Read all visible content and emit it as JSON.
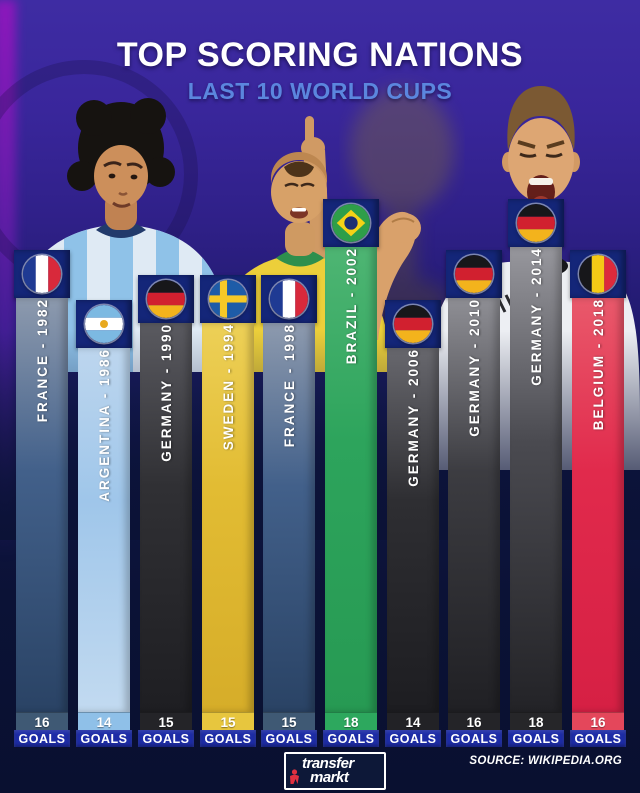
{
  "title": {
    "main": "TOP SCORING NATIONS",
    "subtitle": "LAST 10 WORLD CUPS"
  },
  "footer": {
    "brand_line1": "transfer",
    "brand_line2": "markt",
    "source": "SOURCE: WIKIPEDIA.ORG"
  },
  "colors": {
    "background_top": "#3e2ca3",
    "background_bottom": "#091030",
    "header_box": "#142679",
    "goals_strip": "#1d2ca6",
    "title": "#ffffff",
    "subtitle": "#5b86de"
  },
  "chart_data": {
    "type": "bar",
    "title": "TOP SCORING NATIONS",
    "subtitle": "LAST 10 WORLD CUPS",
    "unit": "GOALS",
    "goals_label": "GOALS",
    "ylim": [
      0,
      18
    ],
    "categories": [
      "FRANCE - 1982",
      "ARGENTINA - 1986",
      "GERMANY - 1990",
      "SWEDEN - 1994",
      "FRANCE - 1998",
      "BRAZIL - 2002",
      "GERMANY - 2006",
      "GERMANY - 2010",
      "GERMANY - 2014",
      "BELGIUM - 2018"
    ],
    "values": [
      16,
      14,
      15,
      15,
      15,
      18,
      14,
      16,
      18,
      16
    ],
    "bars": [
      {
        "label": "FRANCE - 1982",
        "nation": "France",
        "year": 1982,
        "goals": 16,
        "flag": "france",
        "colors": {
          "top": "#8d9aae",
          "mid": "#42608a",
          "bottom": "#2a4365",
          "value_bg": "#3f5974"
        }
      },
      {
        "label": "ARGENTINA - 1986",
        "nation": "Argentina",
        "year": 1986,
        "goals": 14,
        "flag": "argentina",
        "colors": {
          "top": "#bdd6ee",
          "mid": "#9fc6ea",
          "bottom": "#c2daf0",
          "value_bg": "#8fc0e8"
        }
      },
      {
        "label": "GERMANY - 1990",
        "nation": "Germany",
        "year": 1990,
        "goals": 15,
        "flag": "germany",
        "colors": {
          "top": "#5a5a60",
          "mid": "#303034",
          "bottom": "#1e1e22",
          "value_bg": "#242428"
        }
      },
      {
        "label": "SWEDEN - 1994",
        "nation": "Sweden",
        "year": 1994,
        "goals": 15,
        "flag": "sweden",
        "colors": {
          "top": "#edd057",
          "mid": "#e2bc33",
          "bottom": "#d6ad29",
          "value_bg": "#e7c63e"
        }
      },
      {
        "label": "FRANCE - 1998",
        "nation": "France",
        "year": 1998,
        "goals": 15,
        "flag": "france",
        "colors": {
          "top": "#8d9aae",
          "mid": "#42608a",
          "bottom": "#2a4365",
          "value_bg": "#3f5974"
        }
      },
      {
        "label": "BRAZIL - 2002",
        "nation": "Brazil",
        "year": 2002,
        "goals": 18,
        "flag": "brazil",
        "colors": {
          "top": "#4eb573",
          "mid": "#2da45c",
          "bottom": "#279a53",
          "value_bg": "#2da85e"
        }
      },
      {
        "label": "GERMANY - 2006",
        "nation": "Germany",
        "year": 2006,
        "goals": 14,
        "flag": "germany",
        "colors": {
          "top": "#68686e",
          "mid": "#2e2e32",
          "bottom": "#1d1d21",
          "value_bg": "#222226"
        }
      },
      {
        "label": "GERMANY - 2010",
        "nation": "Germany",
        "year": 2010,
        "goals": 16,
        "flag": "germany",
        "colors": {
          "top": "#8f8f95",
          "mid": "#3c3c41",
          "bottom": "#202024",
          "value_bg": "#242428"
        }
      },
      {
        "label": "GERMANY - 2014",
        "nation": "Germany",
        "year": 2014,
        "goals": 18,
        "flag": "germany",
        "colors": {
          "top": "#97979d",
          "mid": "#4a4a50",
          "bottom": "#232327",
          "value_bg": "#262629"
        }
      },
      {
        "label": "BELGIUM - 2018",
        "nation": "Belgium",
        "year": 2018,
        "goals": 16,
        "flag": "belgium",
        "colors": {
          "top": "#e9596b",
          "mid": "#e12a4c",
          "bottom": "#d62044",
          "value_bg": "#e4475b"
        }
      }
    ]
  }
}
